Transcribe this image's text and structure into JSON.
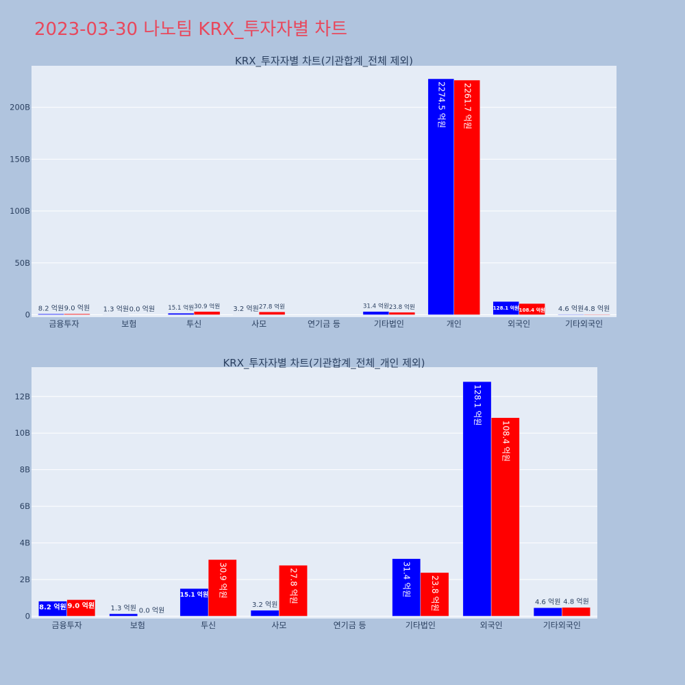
{
  "page": {
    "title": "2023-03-30 나노팀 KRX_투자자별 차트"
  },
  "colors": {
    "background": "#b0c4de",
    "plot_bg": "#e5ecf6",
    "title": "#e8485c",
    "series_a": "#0000ff",
    "series_b": "#ff0000"
  },
  "chart_data": [
    {
      "type": "bar",
      "title": "KRX_투자자별 차트(기관합계_전체 제외)",
      "categories": [
        "금융투자",
        "보험",
        "투신",
        "사모",
        "연기금 등",
        "기타법인",
        "개인",
        "외국인",
        "기타외국인"
      ],
      "series": [
        {
          "values": [
            0.82,
            0.13,
            1.51,
            0.32,
            0,
            3.14,
            227.45,
            12.81,
            0.46
          ],
          "labels": [
            "8.2 억원",
            "1.3 억원",
            "15.1 억원",
            "3.2 억원",
            "",
            "31.4 억원",
            "2274.5 억원",
            "128.1 억원",
            "4.6 억원"
          ]
        },
        {
          "values": [
            0.9,
            0.0,
            3.09,
            2.78,
            0,
            2.38,
            226.17,
            10.84,
            0.48
          ],
          "labels": [
            "9.0 억원",
            "0.0 억원",
            "30.9 억원",
            "27.8 억원",
            "",
            "23.8 억원",
            "2261.7 억원",
            "108.4 억원",
            "4.8 억원"
          ]
        }
      ],
      "yaxis": {
        "ticks": [
          0,
          50,
          100,
          150,
          200
        ],
        "tick_labels": [
          "0",
          "50B",
          "100B",
          "150B",
          "200B"
        ],
        "range": [
          0,
          240
        ]
      },
      "grid": true
    },
    {
      "type": "bar",
      "title": "KRX_투자자별 차트(기관합계_전체_개인 제외)",
      "categories": [
        "금융투자",
        "보험",
        "투신",
        "사모",
        "연기금 등",
        "기타법인",
        "외국인",
        "기타외국인"
      ],
      "series": [
        {
          "values": [
            0.82,
            0.13,
            1.51,
            0.32,
            0,
            3.14,
            12.81,
            0.46
          ],
          "labels": [
            "8.2 억원",
            "1.3 억원",
            "15.1 억원",
            "3.2 억원",
            "",
            "31.4 억원",
            "128.1 억원",
            "4.6 억원"
          ]
        },
        {
          "values": [
            0.9,
            0.0,
            3.09,
            2.78,
            0,
            2.38,
            10.84,
            0.48
          ],
          "labels": [
            "9.0 억원",
            "0.0 억원",
            "30.9 억원",
            "27.8 억원",
            "",
            "23.8 억원",
            "108.4 억원",
            "4.8 억원"
          ]
        }
      ],
      "yaxis": {
        "ticks": [
          0,
          2,
          4,
          6,
          8,
          10,
          12
        ],
        "tick_labels": [
          "0",
          "2B",
          "4B",
          "6B",
          "8B",
          "10B",
          "12B"
        ],
        "range": [
          0,
          13.6
        ]
      },
      "grid": true
    }
  ]
}
